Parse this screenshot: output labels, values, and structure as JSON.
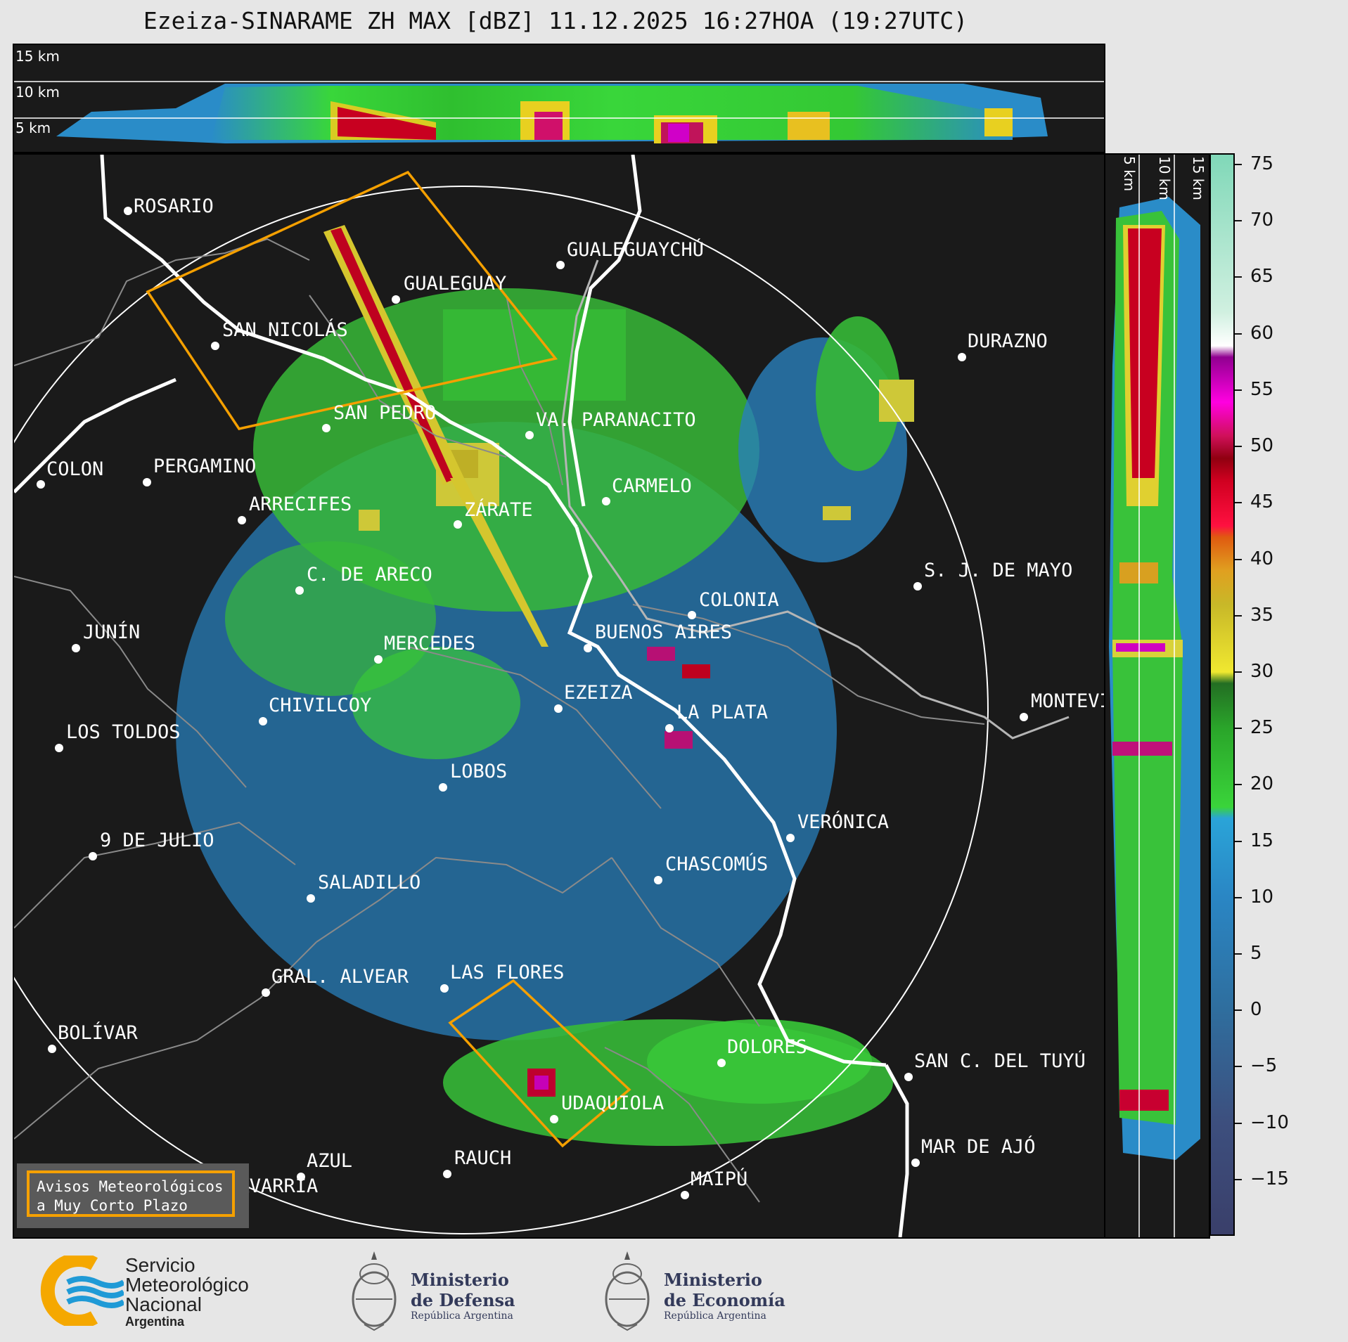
{
  "title": "Ezeiza-SINARAME ZH MAX [dBZ] 11.12.2025 16:27HOA (19:27UTC)",
  "top_panel": {
    "altitude_labels": [
      "15 km",
      "10 km",
      "5 km"
    ]
  },
  "side_panel": {
    "altitude_labels": [
      "5 km",
      "10 km",
      "15 km"
    ]
  },
  "cities": [
    {
      "name": "ROSARIO"
    },
    {
      "name": "GUALEGUAYCHÚ"
    },
    {
      "name": "GUALEGUAY"
    },
    {
      "name": "SAN NICOLÁS"
    },
    {
      "name": "DURAZNO"
    },
    {
      "name": "SAN PEDRO"
    },
    {
      "name": "VA. PARANACITO"
    },
    {
      "name": "COLON"
    },
    {
      "name": "PERGAMINO"
    },
    {
      "name": "CARMELO"
    },
    {
      "name": "ARRECIFES"
    },
    {
      "name": "ZÁRATE"
    },
    {
      "name": "S. J. DE MAYO"
    },
    {
      "name": "C. DE ARECO"
    },
    {
      "name": "COLONIA"
    },
    {
      "name": "JUNÍN"
    },
    {
      "name": "BUENOS AIRES"
    },
    {
      "name": "MERCEDES"
    },
    {
      "name": "EZEIZA"
    },
    {
      "name": "MONTEVIDEO"
    },
    {
      "name": "CHIVILCOY"
    },
    {
      "name": "LA PLATA"
    },
    {
      "name": "LOS TOLDOS"
    },
    {
      "name": "LOBOS"
    },
    {
      "name": "VERÓNICA"
    },
    {
      "name": "9 DE JULIO"
    },
    {
      "name": "CHASCOMÚS"
    },
    {
      "name": "SALADILLO"
    },
    {
      "name": "GRAL. ALVEAR"
    },
    {
      "name": "LAS FLORES"
    },
    {
      "name": "BOLÍVAR"
    },
    {
      "name": "DOLORES"
    },
    {
      "name": "SAN C. DEL TUYÚ"
    },
    {
      "name": "UDAQUIOLA"
    },
    {
      "name": "MAR DE AJÓ"
    },
    {
      "name": "AZUL"
    },
    {
      "name": "RAUCH"
    },
    {
      "name": "OLAVARRÍA"
    },
    {
      "name": "MAIPÚ"
    }
  ],
  "colorbar": {
    "unit": "dBZ",
    "ticks": [
      "75",
      "70",
      "65",
      "60",
      "55",
      "50",
      "45",
      "40",
      "35",
      "30",
      "25",
      "20",
      "15",
      "10",
      "5",
      "0",
      "−5",
      "−10",
      "−15"
    ],
    "range": [
      -20,
      76
    ]
  },
  "legend": {
    "line1": "Avisos Meteorológicos",
    "line2": "a Muy Corto Plazo"
  },
  "logos": {
    "smn": {
      "line1": "Servicio",
      "line2": "Meteorológico",
      "line3": "Nacional",
      "line4": "Argentina"
    },
    "defensa": {
      "line1": "Ministerio",
      "line2": "de Defensa",
      "line3": "República Argentina"
    },
    "economia": {
      "line1": "Ministerio",
      "line2": "de Economía",
      "line3": "República Argentina"
    }
  },
  "colors": {
    "warning": "#f5a000",
    "background": "#1a1a1a",
    "smn_blue": "#1f9ad6",
    "smn_orange": "#f5a800"
  }
}
